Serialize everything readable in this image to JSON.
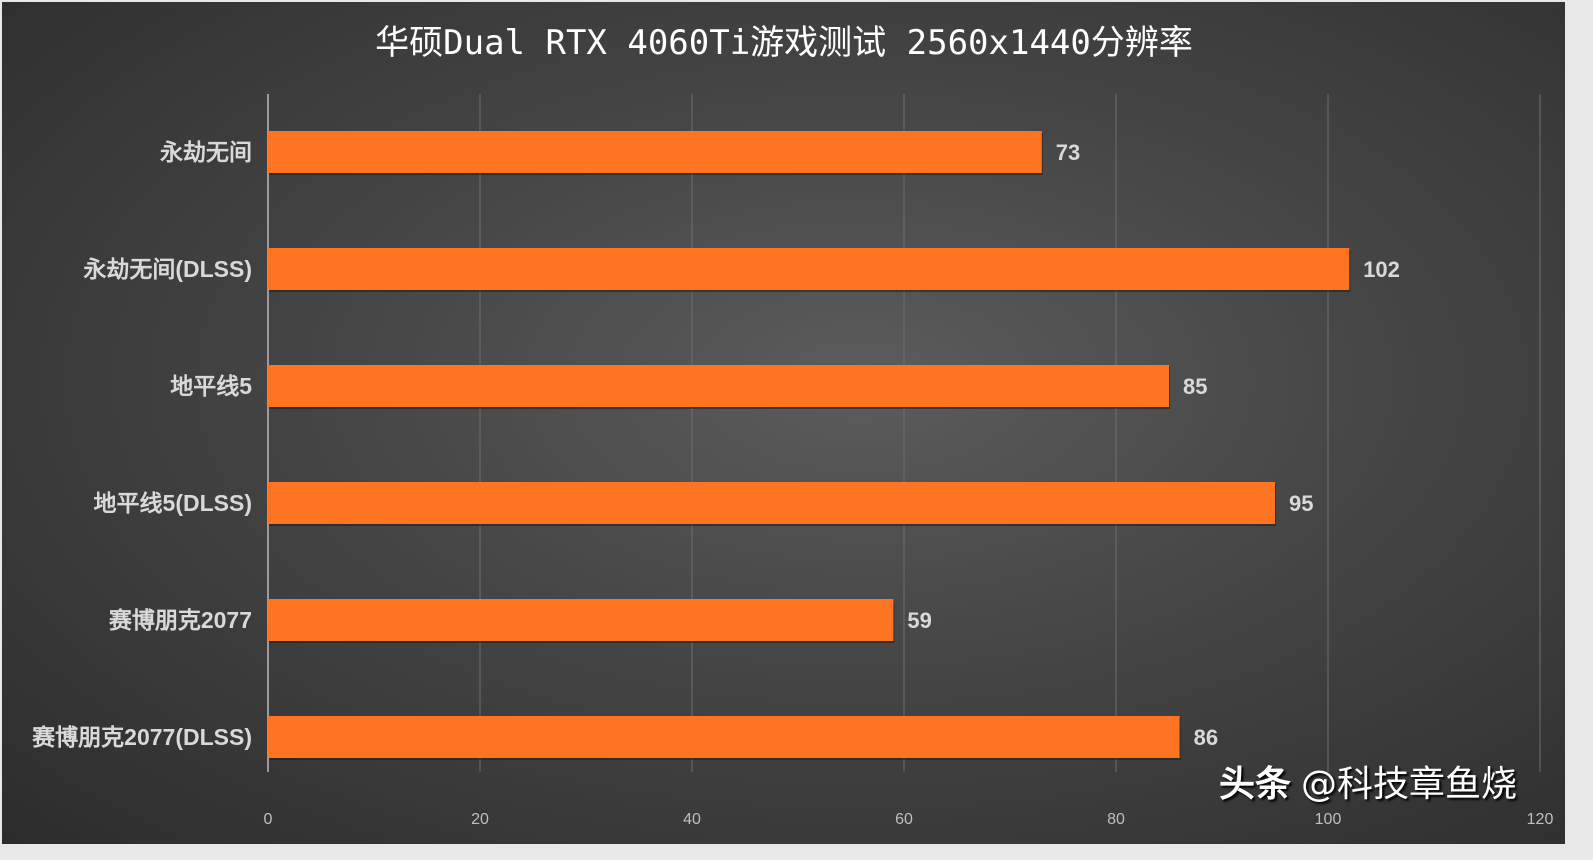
{
  "chart_data": {
    "type": "bar",
    "orientation": "horizontal",
    "title": "华硕Dual RTX 4060Ti游戏测试 2560x1440分辨率",
    "categories": [
      "永劫无间",
      "永劫无间(DLSS)",
      "地平线5",
      "地平线5(DLSS)",
      "赛博朋克2077",
      "赛博朋克2077(DLSS)"
    ],
    "values": [
      73,
      102,
      85,
      95,
      59,
      86
    ],
    "xlim": [
      0,
      120
    ],
    "xticks": [
      "0",
      "20",
      "40",
      "60",
      "80",
      "100",
      "120"
    ],
    "xlabel": "",
    "ylabel": "",
    "grid": true,
    "bar_color": "#ff7420"
  },
  "watermark": {
    "brand": "头条",
    "author": "@科技章鱼烧"
  }
}
